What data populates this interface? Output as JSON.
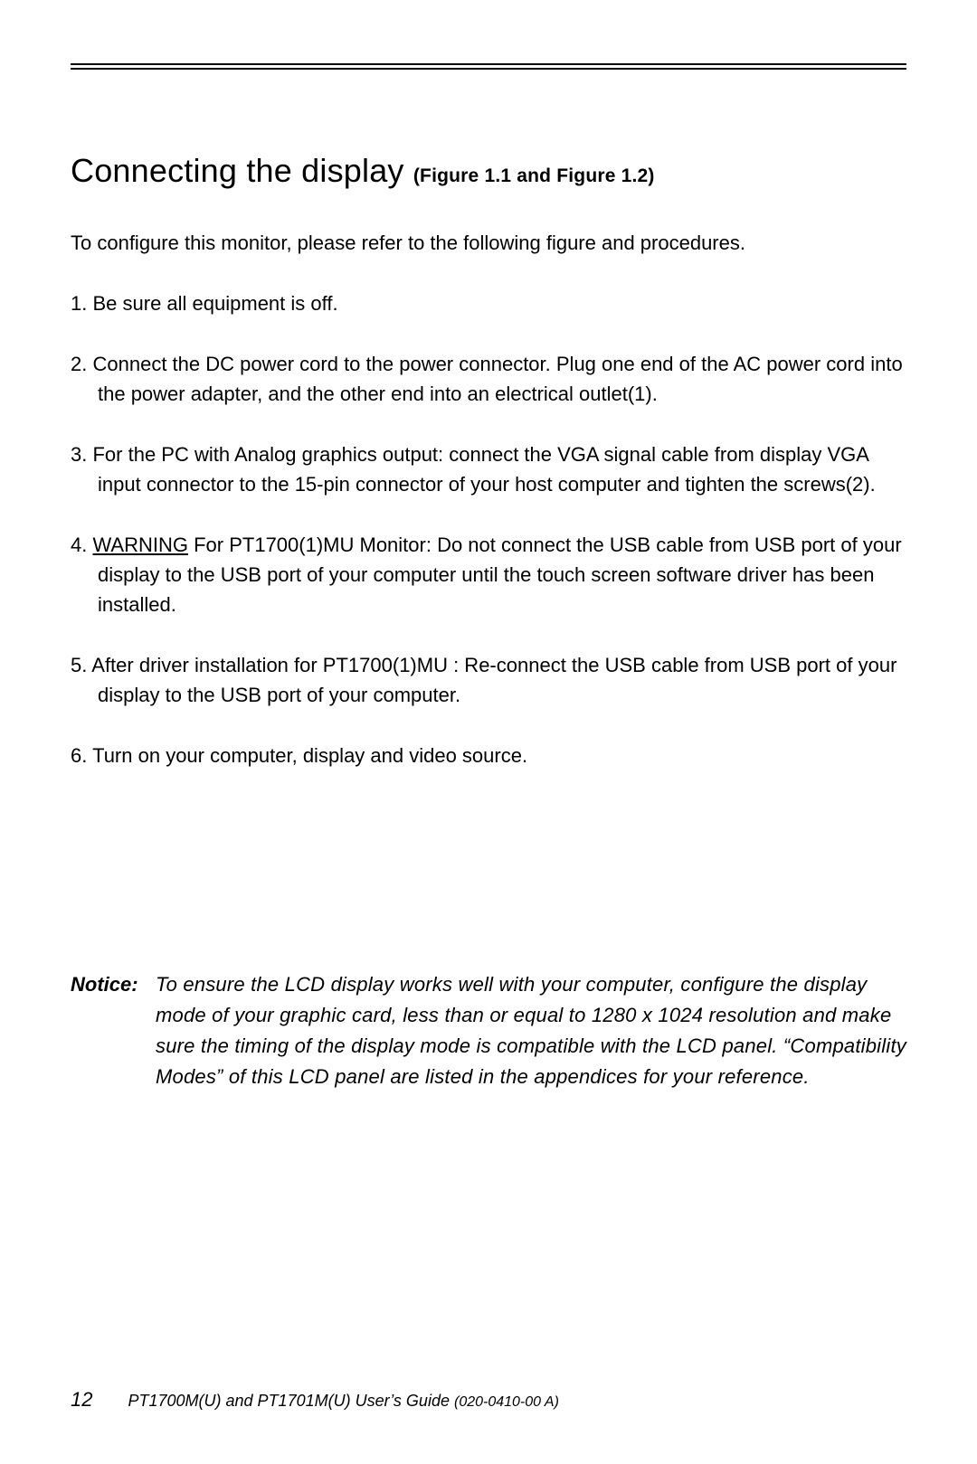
{
  "heading": {
    "title": "Connecting the display",
    "subref": "(Figure 1.1 and Figure 1.2)"
  },
  "intro": "To configure this monitor, please refer to the following figure and procedures.",
  "steps": [
    {
      "num": "1.",
      "text": "Be sure all equipment is off."
    },
    {
      "num": "2.",
      "text": "Connect the DC power cord to the power connector. Plug one end of the AC power cord into the power adapter, and the other end into an electrical outlet(1)."
    },
    {
      "num": "3.",
      "text": "For the PC with Analog graphics output: connect the VGA signal cable from display VGA input connector to the 15-pin connector of  your host computer and tighten the screws(2)."
    },
    {
      "num": "4.",
      "warning_label": "WARNING",
      "text": " For PT1700(1)MU Monitor: Do not connect the USB cable from USB port of your display to the USB port of your computer until the touch screen software driver has been installed."
    },
    {
      "num": "5.",
      "text": "After driver installation for PT1700(1)MU : Re-connect the USB cable from USB port of your display to the  USB port of your computer."
    },
    {
      "num": "6.",
      "text": "Turn on your computer, display and video source."
    }
  ],
  "notice": {
    "label": "Notice:",
    "text": "To ensure the LCD display works well with your computer, configure the display mode of your graphic card, less than or equal to 1280 x 1024 resolution and make sure the timing of the display mode is compatible with the LCD panel. “Compatibility Modes” of this LCD panel are listed in the appendices for your reference."
  },
  "footer": {
    "page_number": "12",
    "doc_title": "PT1700M(U) and PT1701M(U)  User’s Guide",
    "doc_number": "(020-0410-00 A)"
  }
}
